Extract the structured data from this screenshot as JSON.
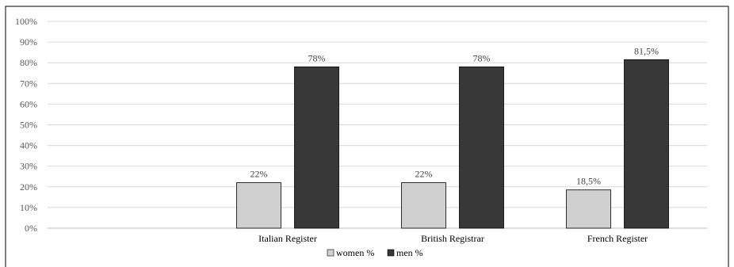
{
  "chart_data": {
    "type": "bar",
    "categories": [
      "Italian Register",
      "British Registrar",
      "French Register"
    ],
    "series": [
      {
        "name": "women %",
        "values": [
          22,
          22,
          18.5
        ],
        "labels": [
          "22%",
          "22%",
          "18,5%"
        ],
        "color": "#d0d0d0"
      },
      {
        "name": "men %",
        "values": [
          78,
          78,
          81.5
        ],
        "labels": [
          "78%",
          "78%",
          "81,5%"
        ],
        "color": "#383838"
      }
    ],
    "ylim": [
      0,
      100
    ],
    "yticks": [
      "0%",
      "10%",
      "20%",
      "30%",
      "40%",
      "50%",
      "60%",
      "70%",
      "80%",
      "90%",
      "100%"
    ],
    "grid": true,
    "legend": "bottom"
  }
}
